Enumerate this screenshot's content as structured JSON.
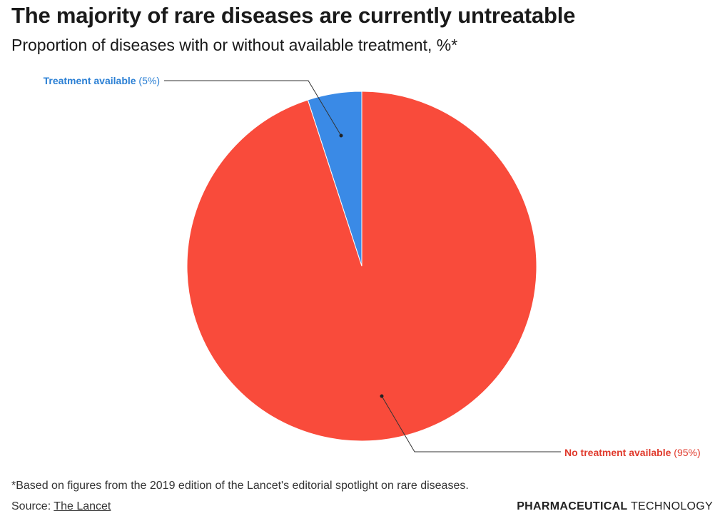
{
  "chart_data": {
    "type": "pie",
    "title": "The majority of rare diseases are currently untreatable",
    "subtitle": "Proportion of diseases with or without available treatment, %*",
    "slices": [
      {
        "name": "Treatment available",
        "value": 5,
        "value_label": "(5%)",
        "color": "#3a8ae6",
        "label_color": "#2a7fd4"
      },
      {
        "name": "No treatment available",
        "value": 95,
        "value_label": "(95%)",
        "color": "#f94b3b",
        "label_color": "#e03a2c"
      }
    ]
  },
  "footnote": "*Based on figures from the 2019 edition of the Lancet's editorial spotlight on rare diseases.",
  "source": {
    "prefix": "Source: ",
    "link_text": "The Lancet"
  },
  "brand": {
    "strong": "PHARMACEUTICAL",
    "light": " TECHNOLOGY"
  }
}
